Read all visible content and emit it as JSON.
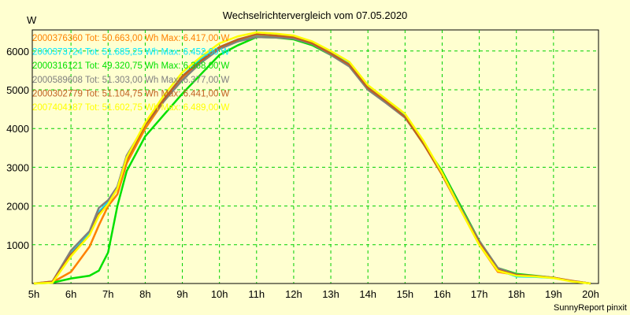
{
  "chart_data": {
    "type": "line",
    "title": "Wechselrichtervergleich vom 07.05.2020",
    "ylabel": "W",
    "xlabel": "",
    "footer": "SunnyReport pinxit",
    "xlim": [
      5,
      20
    ],
    "ylim": [
      0,
      6500
    ],
    "grid": true,
    "legend_placement": "top-left",
    "x_ticks": [
      5,
      6,
      7,
      8,
      9,
      10,
      11,
      12,
      13,
      14,
      15,
      16,
      17,
      18,
      19,
      20
    ],
    "x_tick_labels": [
      "5h",
      "6h",
      "7h",
      "8h",
      "9h",
      "10h",
      "11h",
      "12h",
      "13h",
      "14h",
      "15h",
      "16h",
      "17h",
      "18h",
      "19h",
      "20h"
    ],
    "y_ticks": [
      1000,
      2000,
      3000,
      4000,
      5000,
      6000
    ],
    "y_tick_labels": [
      "1000",
      "2000",
      "3000",
      "4000",
      "5000",
      "6000"
    ],
    "x": [
      5,
      5.5,
      6,
      6.5,
      6.75,
      7,
      7.25,
      7.5,
      8,
      8.5,
      9,
      9.5,
      10,
      10.5,
      11,
      11.5,
      12,
      12.5,
      13,
      13.5,
      14,
      14.5,
      15,
      15.5,
      16,
      16.5,
      17,
      17.5,
      18,
      18.5,
      19,
      19.5,
      20
    ],
    "series": [
      {
        "name": "2000376360",
        "legend": "2000376360 Tot: 50.663,00 Wh Max: 6.417,00 W",
        "color": "#ff8000",
        "values": [
          0,
          30,
          300,
          950,
          1500,
          2000,
          2300,
          3100,
          4000,
          4700,
          5300,
          5750,
          6100,
          6250,
          6400,
          6380,
          6350,
          6200,
          5950,
          5650,
          5050,
          4700,
          4300,
          3600,
          2800,
          1900,
          1000,
          300,
          220,
          180,
          150,
          60,
          0
        ]
      },
      {
        "name": "2000373724",
        "legend": "2000373724 Tot: 51.685,25 Wh Max: 6.452,00 W",
        "color": "#00e8ff",
        "values": [
          0,
          40,
          800,
          1300,
          1850,
          2100,
          2500,
          3250,
          4100,
          4750,
          5350,
          5800,
          6100,
          6300,
          6420,
          6400,
          6370,
          6220,
          5960,
          5680,
          5080,
          4720,
          4330,
          3620,
          2830,
          1920,
          1050,
          350,
          180,
          170,
          140,
          60,
          0
        ]
      },
      {
        "name": "2000316121",
        "legend": "2000316121 Tot: 49.320,75 Wh Max: 6.368,00 W",
        "color": "#00e000",
        "values": [
          0,
          20,
          130,
          200,
          330,
          800,
          2000,
          2900,
          3800,
          4350,
          4900,
          5400,
          5900,
          6150,
          6360,
          6350,
          6300,
          6150,
          5900,
          5620,
          5000,
          4680,
          4300,
          3600,
          2900,
          2000,
          1100,
          400,
          250,
          200,
          150,
          60,
          0
        ]
      },
      {
        "name": "2000589608",
        "legend": "2000589608 Tot: 51.303,00 Wh Max: 6.377,00 W",
        "color": "#808080",
        "values": [
          0,
          50,
          850,
          1350,
          1950,
          2150,
          2500,
          3300,
          4100,
          4700,
          5250,
          5700,
          6050,
          6250,
          6360,
          6350,
          6320,
          6180,
          5900,
          5600,
          5000,
          4650,
          4280,
          3620,
          2850,
          1950,
          1100,
          400,
          230,
          190,
          150,
          60,
          0
        ]
      },
      {
        "name": "2000302779",
        "legend": "2000302779 Tot: 51.104,75 Wh Max: 6.441,00 W",
        "color": "#c06020",
        "values": [
          0,
          50,
          750,
          1250,
          1800,
          2050,
          2450,
          3200,
          4100,
          4750,
          5350,
          5750,
          6100,
          6300,
          6430,
          6400,
          6360,
          6200,
          5940,
          5650,
          5050,
          4700,
          4300,
          3600,
          2820,
          1900,
          1050,
          350,
          220,
          190,
          150,
          70,
          0
        ]
      },
      {
        "name": "2007404187",
        "legend": "2007404187 Tot: 51.602,75 Wh Max: 6.489,00 W",
        "color": "#ffff00",
        "values": [
          0,
          20,
          700,
          1250,
          1750,
          2050,
          2450,
          3250,
          4150,
          4850,
          5450,
          5850,
          6200,
          6380,
          6480,
          6450,
          6400,
          6250,
          6000,
          5720,
          5120,
          4750,
          4380,
          3680,
          2850,
          1900,
          1000,
          330,
          200,
          180,
          140,
          50,
          0
        ]
      }
    ]
  }
}
